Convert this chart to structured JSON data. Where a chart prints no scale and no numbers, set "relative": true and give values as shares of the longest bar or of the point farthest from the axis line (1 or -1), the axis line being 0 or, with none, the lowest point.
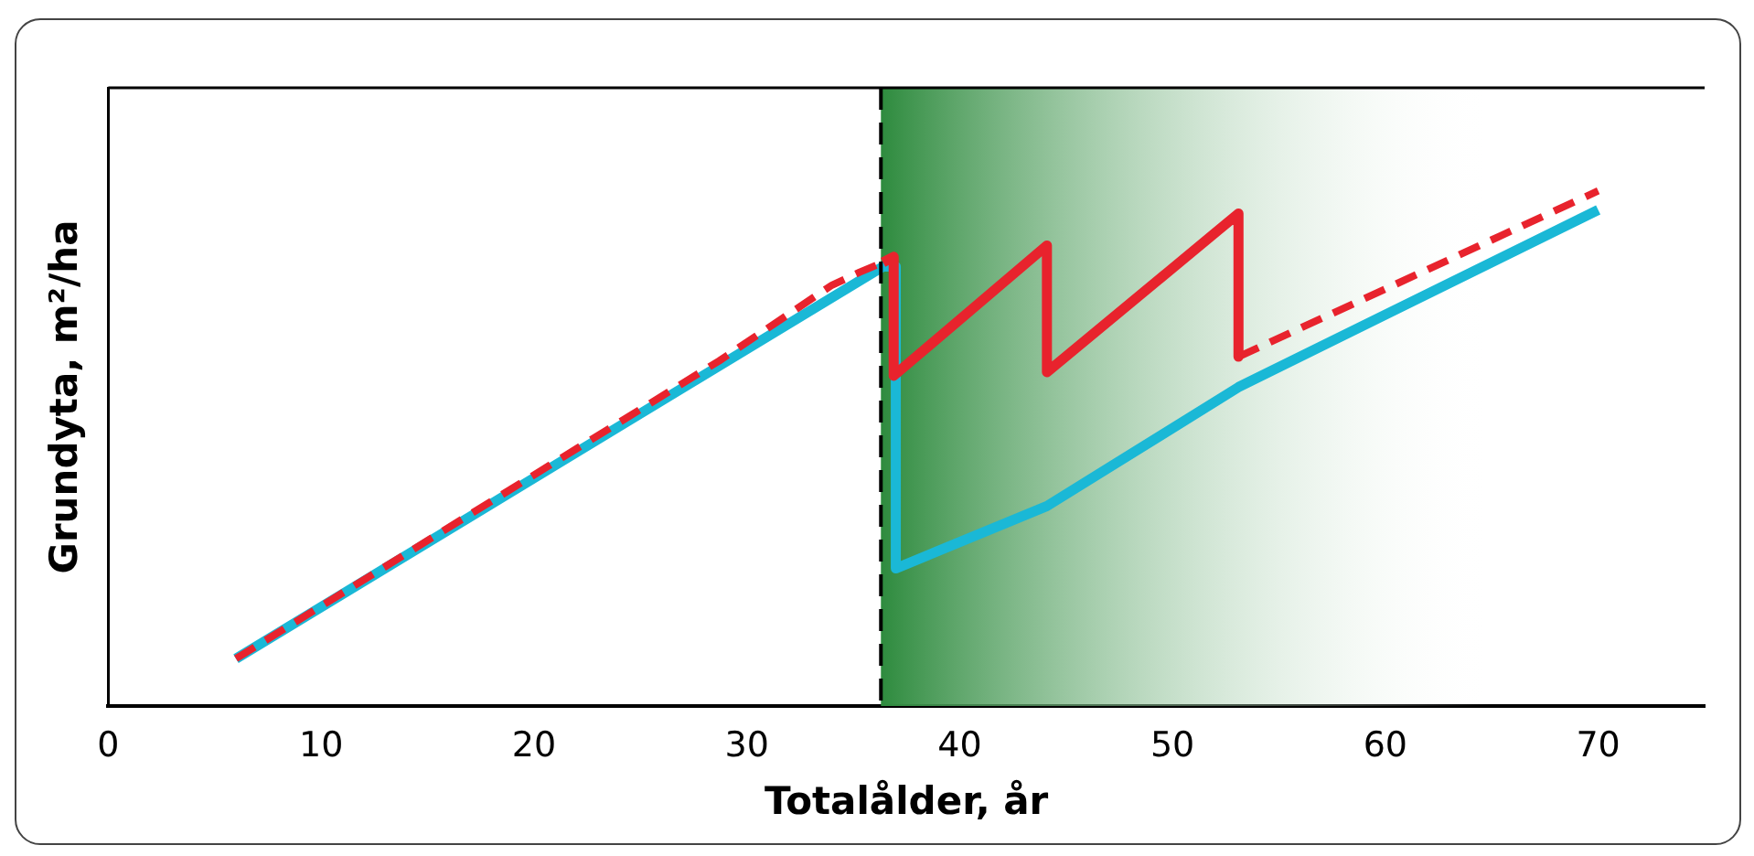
{
  "chart_data": {
    "type": "line",
    "relative": true,
    "xlabel": "Totalålder, år",
    "ylabel": "Grundyta, m²/ha",
    "xlim": [
      0,
      75
    ],
    "xticks": [
      0,
      10,
      20,
      30,
      40,
      50,
      60,
      70
    ],
    "grid": false,
    "legend": false,
    "marker": "none",
    "series": [
      {
        "color": "#1ab8d6",
        "line_style": "solid",
        "x": [
          6,
          36.4,
          37,
          37,
          44.1,
          53.1,
          70
        ],
        "values": [
          0.092,
          0.853,
          0.853,
          0.267,
          0.388,
          0.619,
          0.963
        ]
      },
      {
        "color": "#e8232d",
        "line_style": "dashed",
        "x": [
          6,
          28.7,
          34,
          35.3,
          36.4
        ],
        "values": [
          0.092,
          0.67,
          0.817,
          0.842,
          0.861
        ]
      },
      {
        "color": "#e8232d",
        "line_style": "solid",
        "x": [
          36.4,
          36.9,
          36.9,
          44.1,
          44.1,
          53.1,
          53.1
        ],
        "values": [
          0.861,
          0.872,
          0.641,
          0.894,
          0.648,
          0.956,
          0.678
        ]
      },
      {
        "color": "#e8232d",
        "line_style": "dashed",
        "x": [
          53.1,
          70
        ],
        "values": [
          0.678,
          1
        ]
      }
    ],
    "ref_lines": [
      {
        "axis": "x",
        "value": 36.3,
        "color": "#000000",
        "line_style": "dashed"
      }
    ],
    "bands": [
      {
        "axis": "x",
        "from": 36.3,
        "to": 65,
        "color": "#2e8b3e"
      }
    ]
  }
}
